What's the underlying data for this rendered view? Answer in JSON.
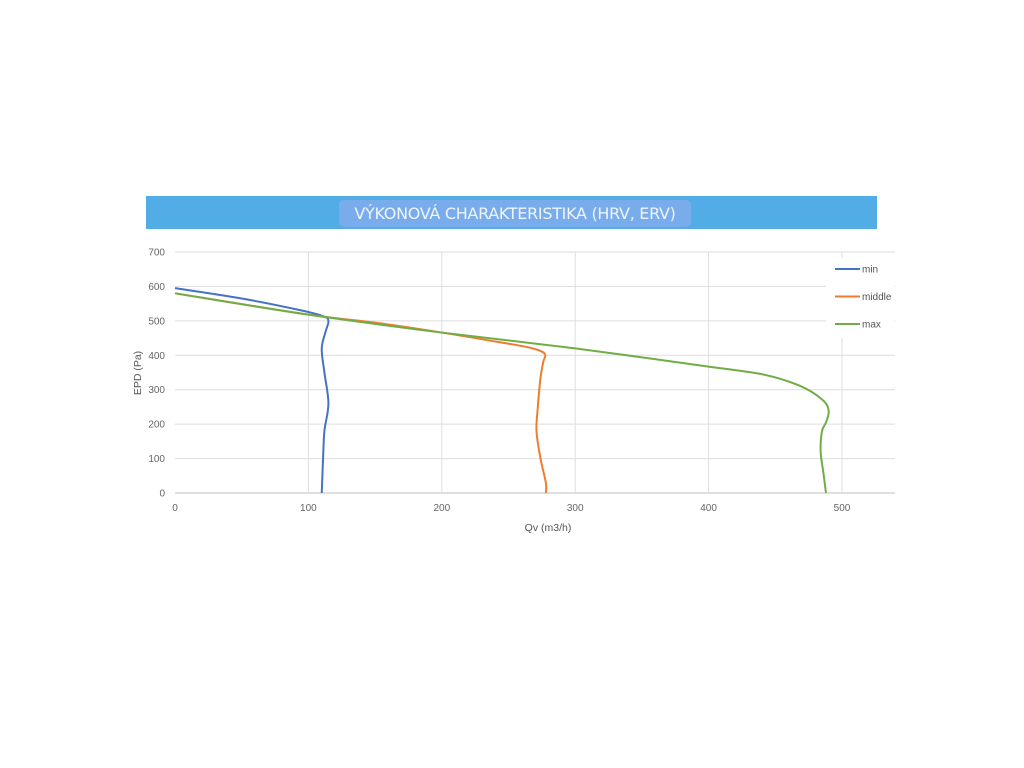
{
  "chart_data": {
    "type": "line",
    "title": "VÝKONOVÁ CHARAKTERISTIKA (HRV, ERV)",
    "xlabel": "Qv (m3/h)",
    "ylabel": "EPD (Pa)",
    "xlim": [
      0,
      540
    ],
    "ylim": [
      0,
      700
    ],
    "xticks": [
      "0",
      "100",
      "200",
      "300",
      "400",
      "500"
    ],
    "yticks": [
      "0",
      "100",
      "200",
      "300",
      "400",
      "500",
      "600",
      "700"
    ],
    "grid": true,
    "legend": "top-right",
    "series": [
      {
        "name": "min",
        "color": "#4472c4",
        "points": [
          [
            0,
            595
          ],
          [
            50,
            565
          ],
          [
            95,
            530
          ],
          [
            112,
            512
          ],
          [
            115,
            498
          ],
          [
            113,
            470
          ],
          [
            110,
            420
          ],
          [
            112,
            350
          ],
          [
            115,
            260
          ],
          [
            112,
            180
          ],
          [
            111,
            100
          ],
          [
            110,
            0
          ]
        ]
      },
      {
        "name": "middle",
        "color": "#ed7d31",
        "points": [
          [
            0,
            580
          ],
          [
            100,
            518
          ],
          [
            150,
            495
          ],
          [
            200,
            466
          ],
          [
            240,
            440
          ],
          [
            266,
            422
          ],
          [
            277,
            405
          ],
          [
            276,
            380
          ],
          [
            274,
            335
          ],
          [
            272,
            250
          ],
          [
            271,
            180
          ],
          [
            274,
            100
          ],
          [
            278,
            30
          ],
          [
            278,
            0
          ]
        ]
      },
      {
        "name": "max",
        "color": "#70ad47",
        "points": [
          [
            0,
            580
          ],
          [
            100,
            518
          ],
          [
            200,
            466
          ],
          [
            300,
            420
          ],
          [
            400,
            367
          ],
          [
            440,
            345
          ],
          [
            468,
            312
          ],
          [
            485,
            272
          ],
          [
            490,
            240
          ],
          [
            488,
            205
          ],
          [
            485,
            180
          ],
          [
            484,
            120
          ],
          [
            486,
            60
          ],
          [
            488,
            0
          ]
        ]
      }
    ]
  }
}
